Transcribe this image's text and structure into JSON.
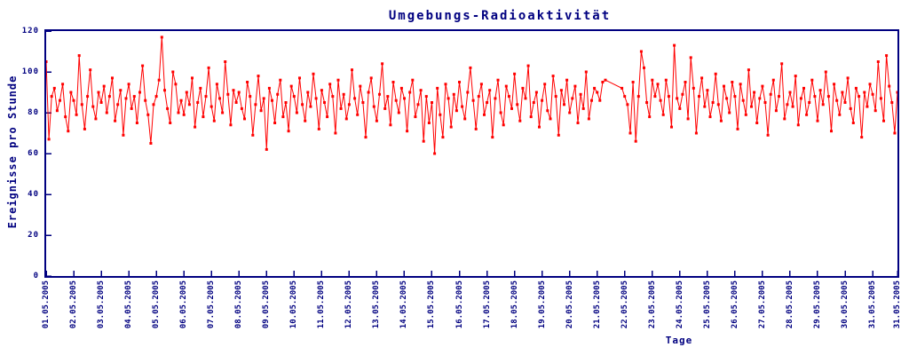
{
  "colors": {
    "axis": "#000080",
    "text": "#000080",
    "series": "#ff0000",
    "background": "#ffffff"
  },
  "chart_data": {
    "type": "line",
    "title": "Umgebungs-Radioaktivität",
    "xlabel": "Tage",
    "ylabel": "Ereignisse pro Stunde",
    "ylim": [
      0,
      120
    ],
    "y_ticks": [
      0,
      20,
      40,
      60,
      80,
      100,
      120
    ],
    "x_tick_labels": [
      "01.05.2005",
      "02.05.2005",
      "03.05.2005",
      "04.05.2005",
      "05.05.2005",
      "06.05.2005",
      "07.05.2005",
      "08.05.2005",
      "09.05.2005",
      "10.05.2005",
      "11.05.2005",
      "12.05.2005",
      "13.05.2005",
      "14.05.2005",
      "15.05.2005",
      "16.05.2005",
      "17.05.2005",
      "18.05.2005",
      "19.05.2005",
      "20.05.2005",
      "21.05.2005",
      "22.05.2005",
      "23.05.2005",
      "24.05.2005",
      "25.05.2005",
      "26.05.2005",
      "27.05.2005",
      "28.05.2005",
      "29.05.2005",
      "30.05.2005",
      "31.05.2005",
      "31.05.2005"
    ],
    "grid": false,
    "legend": "none",
    "marker": "square",
    "points_per_day": 10,
    "x_range_days": 31,
    "series": [
      {
        "name": "Ereignisse pro Stunde",
        "values": [
          105,
          67,
          88,
          92,
          81,
          86,
          94,
          78,
          71,
          90,
          86,
          79,
          108,
          84,
          72,
          88,
          101,
          83,
          77,
          90,
          85,
          93,
          80,
          88,
          97,
          76,
          84,
          91,
          69,
          87,
          94,
          82,
          88,
          75,
          90,
          103,
          86,
          79,
          65,
          84,
          88,
          96,
          117,
          91,
          82,
          75,
          100,
          94,
          80,
          86,
          79,
          90,
          84,
          97,
          73,
          85,
          92,
          78,
          88,
          102,
          83,
          76,
          94,
          87,
          80,
          105,
          89,
          74,
          91,
          85,
          90,
          82,
          77,
          95,
          88,
          69,
          84,
          98,
          81,
          87,
          62,
          92,
          86,
          75,
          89,
          96,
          78,
          85,
          71,
          93,
          88,
          80,
          97,
          84,
          76,
          90,
          83,
          99,
          87,
          72,
          91,
          85,
          78,
          94,
          88,
          70,
          96,
          82,
          89,
          77,
          84,
          101,
          87,
          79,
          93,
          85,
          68,
          90,
          97,
          83,
          76,
          89,
          104,
          82,
          88,
          74,
          95,
          86,
          80,
          92,
          87,
          71,
          90,
          96,
          78,
          84,
          91,
          66,
          88,
          75,
          85,
          60,
          92,
          79,
          68,
          94,
          87,
          73,
          89,
          81,
          95,
          83,
          77,
          90,
          102,
          86,
          72,
          88,
          94,
          79,
          85,
          91,
          68,
          87,
          96,
          80,
          74,
          93,
          88,
          82,
          99,
          84,
          76,
          92,
          87,
          103,
          78,
          85,
          90,
          73,
          86,
          94,
          81,
          77,
          98,
          88,
          69,
          91,
          84,
          96,
          80,
          87,
          93,
          75,
          89,
          82,
          100,
          77,
          86,
          92,
          90,
          86,
          95,
          96,
          null,
          null,
          null,
          null,
          null,
          92,
          88,
          84,
          70,
          95,
          66,
          88,
          110,
          102,
          85,
          78,
          96,
          88,
          94,
          86,
          79,
          96,
          88,
          73,
          113,
          87,
          82,
          89,
          95,
          77,
          107,
          92,
          70,
          88,
          97,
          83,
          91,
          78,
          85,
          99,
          84,
          76,
          93,
          87,
          80,
          95,
          88,
          72,
          94,
          86,
          79,
          101,
          83,
          90,
          75,
          87,
          93,
          85,
          69,
          89,
          96,
          81,
          88,
          104,
          77,
          84,
          90,
          83,
          98,
          74,
          87,
          92,
          79,
          85,
          96,
          88,
          76,
          91,
          84,
          100,
          88,
          71,
          94,
          86,
          79,
          90,
          85,
          97,
          82,
          75,
          92,
          88,
          68,
          90,
          83,
          94,
          89,
          81,
          105,
          87,
          76,
          108,
          93,
          85,
          70,
          90
        ]
      }
    ]
  }
}
